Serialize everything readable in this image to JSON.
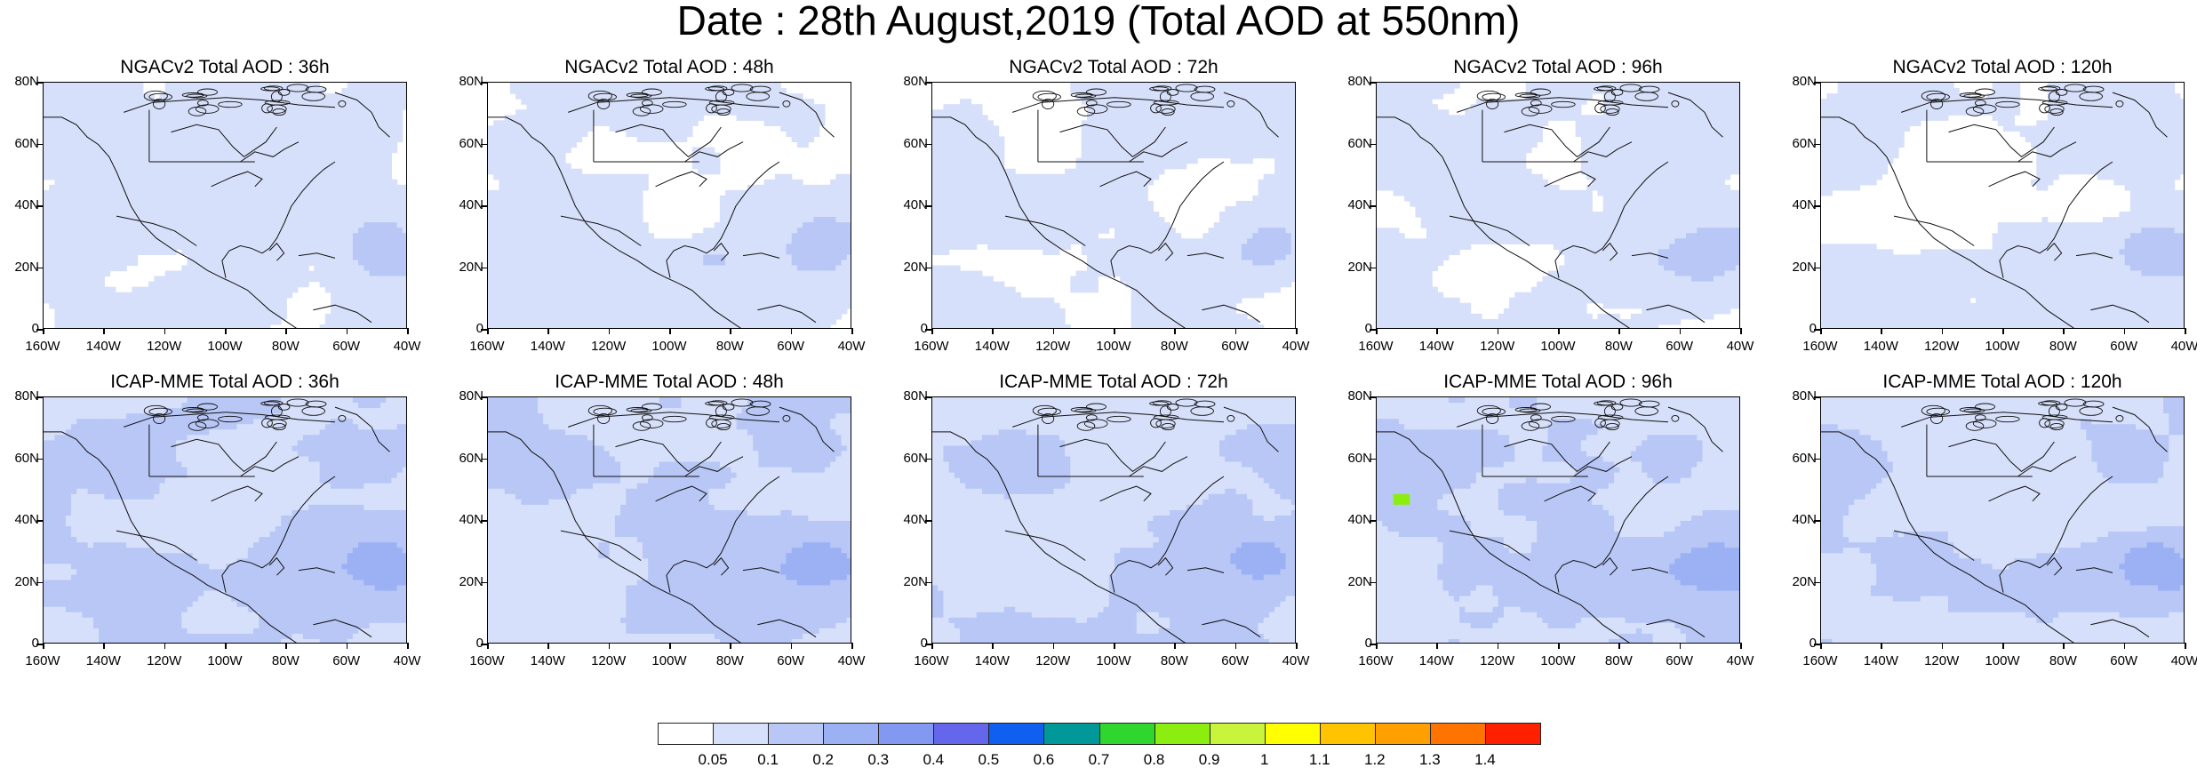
{
  "title": "Date : 28th August,2019 (Total AOD at 550nm)",
  "axes": {
    "y_ticks": [
      "80N",
      "60N",
      "40N",
      "20N",
      "0"
    ],
    "x_ticks": [
      "160W",
      "140W",
      "120W",
      "100W",
      "80W",
      "60W",
      "40W"
    ]
  },
  "panels": [
    {
      "title": "NGACv2 Total AOD : 36h",
      "model": "NGACv2",
      "lead_hours": 36
    },
    {
      "title": "NGACv2 Total AOD : 48h",
      "model": "NGACv2",
      "lead_hours": 48
    },
    {
      "title": "NGACv2 Total AOD : 72h",
      "model": "NGACv2",
      "lead_hours": 72
    },
    {
      "title": "NGACv2 Total AOD : 96h",
      "model": "NGACv2",
      "lead_hours": 96
    },
    {
      "title": "NGACv2 Total AOD : 120h",
      "model": "NGACv2",
      "lead_hours": 120
    },
    {
      "title": "ICAP-MME Total AOD : 36h",
      "model": "ICAP-MME",
      "lead_hours": 36
    },
    {
      "title": "ICAP-MME Total AOD : 48h",
      "model": "ICAP-MME",
      "lead_hours": 48
    },
    {
      "title": "ICAP-MME Total AOD : 72h",
      "model": "ICAP-MME",
      "lead_hours": 72
    },
    {
      "title": "ICAP-MME Total AOD : 96h",
      "model": "ICAP-MME",
      "lead_hours": 96
    },
    {
      "title": "ICAP-MME Total AOD : 120h",
      "model": "ICAP-MME",
      "lead_hours": 120
    }
  ],
  "colorbar": {
    "labels": [
      "0.05",
      "0.1",
      "0.2",
      "0.3",
      "0.4",
      "0.5",
      "0.6",
      "0.7",
      "0.8",
      "0.9",
      "1",
      "1.1",
      "1.2",
      "1.3",
      "1.4"
    ],
    "colors": [
      "#ffffff",
      "#d7e0fa",
      "#b8c7f6",
      "#9cb0f4",
      "#8398f0",
      "#6466ec",
      "#0f60f0",
      "#009899",
      "#2ed62e",
      "#8ced10",
      "#c9f43c",
      "#ffff00",
      "#ffc300",
      "#ffa000",
      "#ff7300",
      "#ff2000"
    ]
  }
}
